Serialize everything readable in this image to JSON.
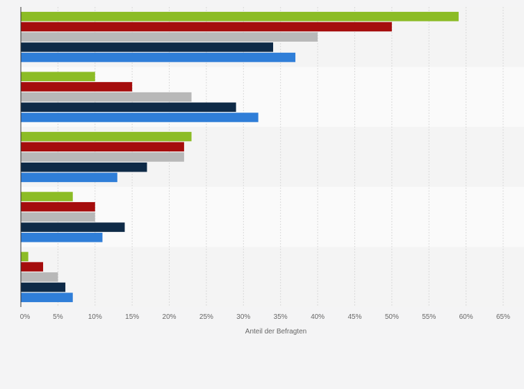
{
  "chart_data": {
    "type": "bar",
    "orientation": "horizontal",
    "title": "",
    "xlabel": "Anteil der Befragten",
    "ylabel": "",
    "xlim": [
      0,
      65
    ],
    "x_ticks": [
      0,
      5,
      10,
      15,
      20,
      25,
      30,
      35,
      40,
      45,
      50,
      55,
      60,
      65
    ],
    "x_tick_labels": [
      "0%",
      "5%",
      "10%",
      "15%",
      "20%",
      "25%",
      "30%",
      "35%",
      "40%",
      "45%",
      "50%",
      "55%",
      "60%",
      "65%"
    ],
    "grid": true,
    "legend": "none",
    "categories": [
      "",
      "",
      "",
      "",
      ""
    ],
    "series": [
      {
        "color": "#8cbc26",
        "values": [
          59,
          10,
          23,
          7,
          1
        ]
      },
      {
        "color": "#a50d0d",
        "values": [
          50,
          15,
          22,
          10,
          3
        ]
      },
      {
        "color": "#b8b8b8",
        "values": [
          40,
          23,
          22,
          10,
          5
        ]
      },
      {
        "color": "#0e2a47",
        "values": [
          34,
          29,
          17,
          14,
          6
        ]
      },
      {
        "color": "#2f7ed8",
        "values": [
          37,
          32,
          13,
          11,
          7
        ]
      }
    ]
  }
}
